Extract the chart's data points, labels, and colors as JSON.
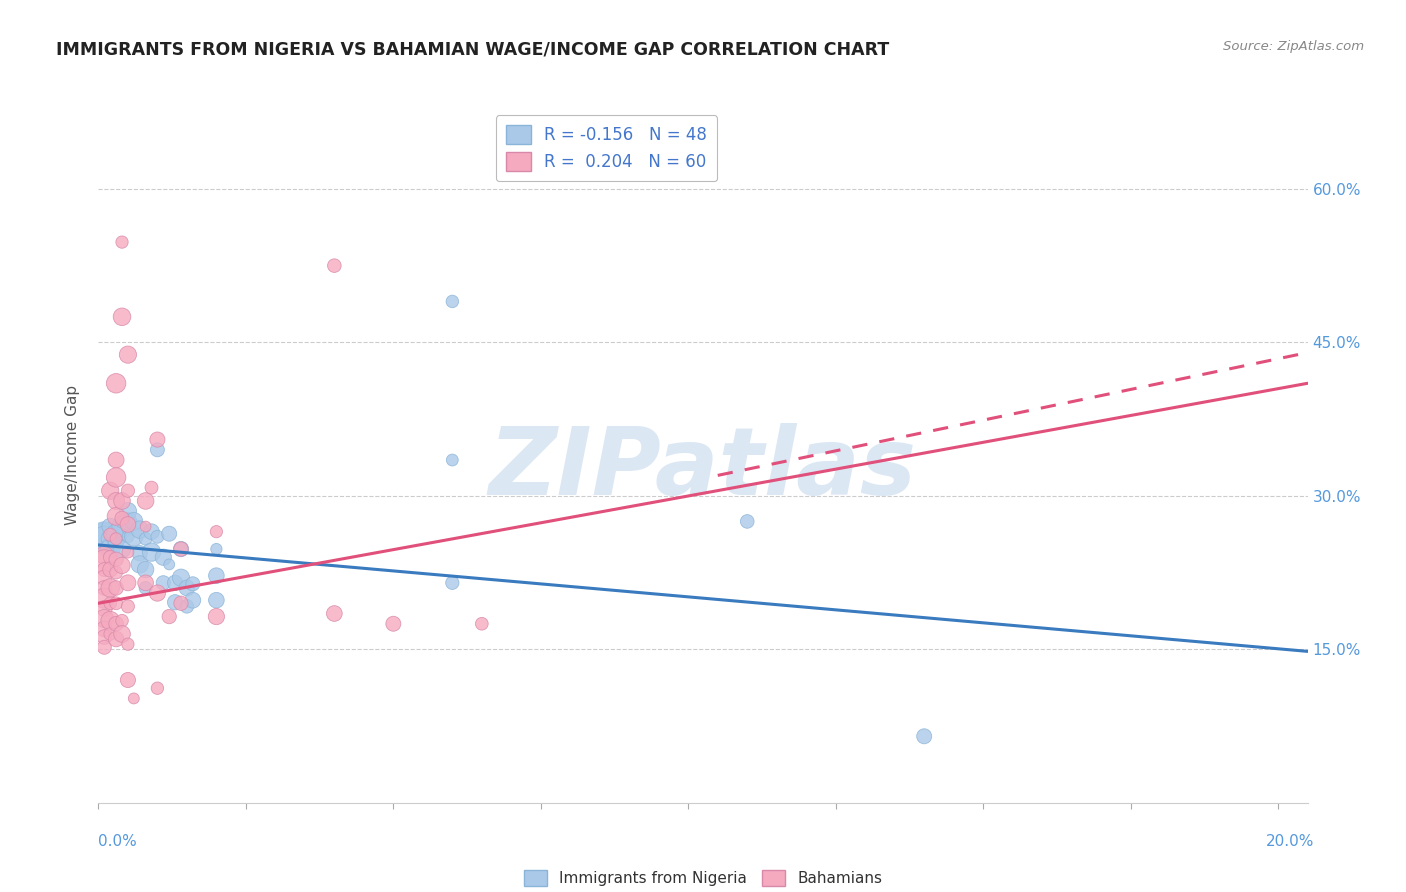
{
  "title": "IMMIGRANTS FROM NIGERIA VS BAHAMIAN WAGE/INCOME GAP CORRELATION CHART",
  "source": "Source: ZipAtlas.com",
  "ylabel": "Wage/Income Gap",
  "right_yticks": [
    0.15,
    0.3,
    0.45,
    0.6
  ],
  "right_yticklabels": [
    "15.0%",
    "30.0%",
    "45.0%",
    "60.0%"
  ],
  "blue_color": "#aac8e8",
  "pink_color": "#f5aac0",
  "blue_line_color": "#3a7bbf",
  "pink_line_color": "#e0507a",
  "watermark": "ZIPatlas",
  "watermark_color": "#c5d8ee",
  "x_min": 0.0,
  "x_max": 0.205,
  "y_min": 0.0,
  "y_max": 0.68,
  "blue_line": [
    0.0,
    0.252,
    0.205,
    0.148
  ],
  "pink_line": [
    0.0,
    0.195,
    0.205,
    0.41
  ],
  "pink_line_dashed": [
    0.105,
    0.32,
    0.205,
    0.44
  ],
  "blue_points": [
    [
      0.001,
      0.255
    ],
    [
      0.001,
      0.26
    ],
    [
      0.001,
      0.262
    ],
    [
      0.001,
      0.258
    ],
    [
      0.002,
      0.252
    ],
    [
      0.002,
      0.258
    ],
    [
      0.002,
      0.27
    ],
    [
      0.002,
      0.248
    ],
    [
      0.003,
      0.26
    ],
    [
      0.003,
      0.256
    ],
    [
      0.003,
      0.263
    ],
    [
      0.004,
      0.266
    ],
    [
      0.004,
      0.248
    ],
    [
      0.004,
      0.27
    ],
    [
      0.004,
      0.275
    ],
    [
      0.005,
      0.268
    ],
    [
      0.005,
      0.26
    ],
    [
      0.005,
      0.275
    ],
    [
      0.005,
      0.285
    ],
    [
      0.006,
      0.275
    ],
    [
      0.006,
      0.26
    ],
    [
      0.007,
      0.267
    ],
    [
      0.007,
      0.244
    ],
    [
      0.007,
      0.233
    ],
    [
      0.008,
      0.258
    ],
    [
      0.008,
      0.228
    ],
    [
      0.008,
      0.21
    ],
    [
      0.009,
      0.245
    ],
    [
      0.009,
      0.265
    ],
    [
      0.01,
      0.345
    ],
    [
      0.01,
      0.26
    ],
    [
      0.011,
      0.24
    ],
    [
      0.011,
      0.215
    ],
    [
      0.012,
      0.263
    ],
    [
      0.012,
      0.233
    ],
    [
      0.013,
      0.215
    ],
    [
      0.013,
      0.196
    ],
    [
      0.014,
      0.248
    ],
    [
      0.014,
      0.22
    ],
    [
      0.015,
      0.21
    ],
    [
      0.015,
      0.192
    ],
    [
      0.016,
      0.214
    ],
    [
      0.016,
      0.198
    ],
    [
      0.02,
      0.248
    ],
    [
      0.02,
      0.222
    ],
    [
      0.02,
      0.198
    ],
    [
      0.06,
      0.49
    ],
    [
      0.06,
      0.335
    ],
    [
      0.06,
      0.215
    ],
    [
      0.11,
      0.275
    ],
    [
      0.14,
      0.065
    ]
  ],
  "pink_points": [
    [
      0.001,
      0.242
    ],
    [
      0.001,
      0.236
    ],
    [
      0.001,
      0.228
    ],
    [
      0.001,
      0.22
    ],
    [
      0.001,
      0.21
    ],
    [
      0.001,
      0.2
    ],
    [
      0.001,
      0.19
    ],
    [
      0.001,
      0.18
    ],
    [
      0.001,
      0.17
    ],
    [
      0.001,
      0.162
    ],
    [
      0.001,
      0.152
    ],
    [
      0.002,
      0.305
    ],
    [
      0.002,
      0.262
    ],
    [
      0.002,
      0.24
    ],
    [
      0.002,
      0.228
    ],
    [
      0.002,
      0.21
    ],
    [
      0.002,
      0.195
    ],
    [
      0.002,
      0.178
    ],
    [
      0.002,
      0.165
    ],
    [
      0.003,
      0.41
    ],
    [
      0.003,
      0.335
    ],
    [
      0.003,
      0.318
    ],
    [
      0.003,
      0.295
    ],
    [
      0.003,
      0.28
    ],
    [
      0.003,
      0.258
    ],
    [
      0.003,
      0.238
    ],
    [
      0.003,
      0.225
    ],
    [
      0.003,
      0.21
    ],
    [
      0.003,
      0.195
    ],
    [
      0.003,
      0.175
    ],
    [
      0.003,
      0.16
    ],
    [
      0.004,
      0.548
    ],
    [
      0.004,
      0.475
    ],
    [
      0.004,
      0.295
    ],
    [
      0.004,
      0.278
    ],
    [
      0.004,
      0.232
    ],
    [
      0.004,
      0.178
    ],
    [
      0.004,
      0.165
    ],
    [
      0.005,
      0.438
    ],
    [
      0.005,
      0.305
    ],
    [
      0.005,
      0.272
    ],
    [
      0.005,
      0.245
    ],
    [
      0.005,
      0.215
    ],
    [
      0.005,
      0.192
    ],
    [
      0.005,
      0.155
    ],
    [
      0.005,
      0.12
    ],
    [
      0.006,
      0.102
    ],
    [
      0.008,
      0.295
    ],
    [
      0.008,
      0.27
    ],
    [
      0.008,
      0.215
    ],
    [
      0.009,
      0.308
    ],
    [
      0.01,
      0.355
    ],
    [
      0.01,
      0.205
    ],
    [
      0.01,
      0.112
    ],
    [
      0.012,
      0.182
    ],
    [
      0.014,
      0.248
    ],
    [
      0.014,
      0.195
    ],
    [
      0.02,
      0.265
    ],
    [
      0.02,
      0.182
    ],
    [
      0.04,
      0.525
    ],
    [
      0.04,
      0.185
    ],
    [
      0.05,
      0.175
    ],
    [
      0.065,
      0.175
    ]
  ]
}
